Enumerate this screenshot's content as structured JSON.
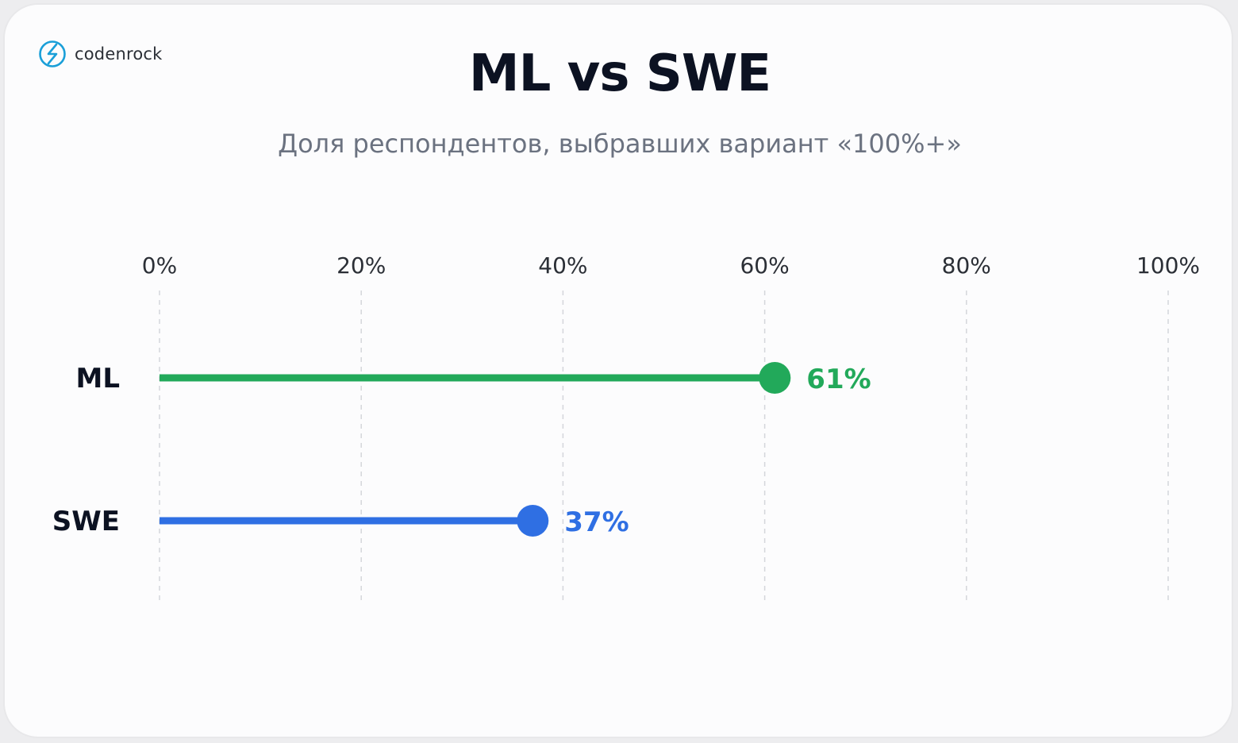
{
  "brand": {
    "name": "codenrock",
    "icon": "codenrock-logo-icon",
    "color": "#1a9fd8"
  },
  "chart_data": {
    "type": "lollipop",
    "title": "ML vs SWE",
    "subtitle": "Доля респондентов, выбравших вариант «100%+»",
    "xlim": [
      0,
      100
    ],
    "x_ticks": [
      0,
      20,
      40,
      60,
      80,
      100
    ],
    "x_tick_labels": [
      "0%",
      "20%",
      "40%",
      "60%",
      "80%",
      "100%"
    ],
    "grid": "vertical-dashed",
    "categories": [
      "ML",
      "SWE"
    ],
    "values": [
      61,
      37
    ],
    "value_labels": [
      "61%",
      "37%"
    ],
    "colors": [
      "#22a95a",
      "#2f6fe3"
    ]
  }
}
